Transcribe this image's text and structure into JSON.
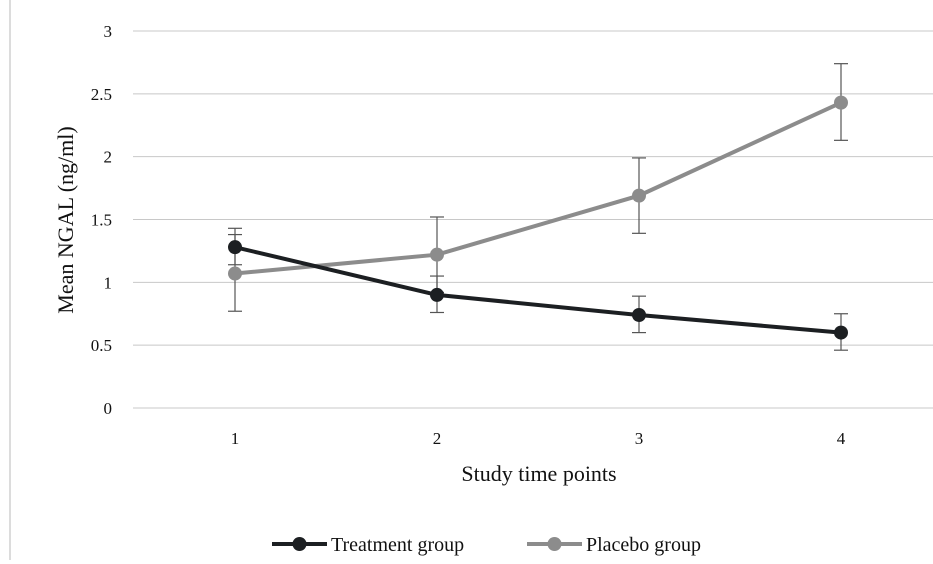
{
  "chart_data": {
    "type": "line",
    "categories": [
      "1",
      "2",
      "3",
      "4"
    ],
    "xlabel": "Study time points",
    "ylabel": "Mean NGAL (ng/ml)",
    "ylim": [
      0,
      3
    ],
    "yticks": [
      "0",
      "0.5",
      "1",
      "1.5",
      "2",
      "2.5",
      "3"
    ],
    "grid": true,
    "legend_position": "bottom",
    "series": [
      {
        "name": "Treatment group",
        "color": "#1c1f22",
        "values": [
          1.28,
          0.9,
          0.74,
          0.6
        ],
        "error_low": [
          1.14,
          0.76,
          0.6,
          0.46
        ],
        "error_high": [
          1.43,
          1.05,
          0.89,
          0.75
        ]
      },
      {
        "name": "Placebo group",
        "color": "#8c8c8c",
        "values": [
          1.07,
          1.22,
          1.69,
          2.43
        ],
        "error_low": [
          0.77,
          0.92,
          1.39,
          2.13
        ],
        "error_high": [
          1.38,
          1.52,
          1.99,
          2.74
        ]
      }
    ]
  }
}
